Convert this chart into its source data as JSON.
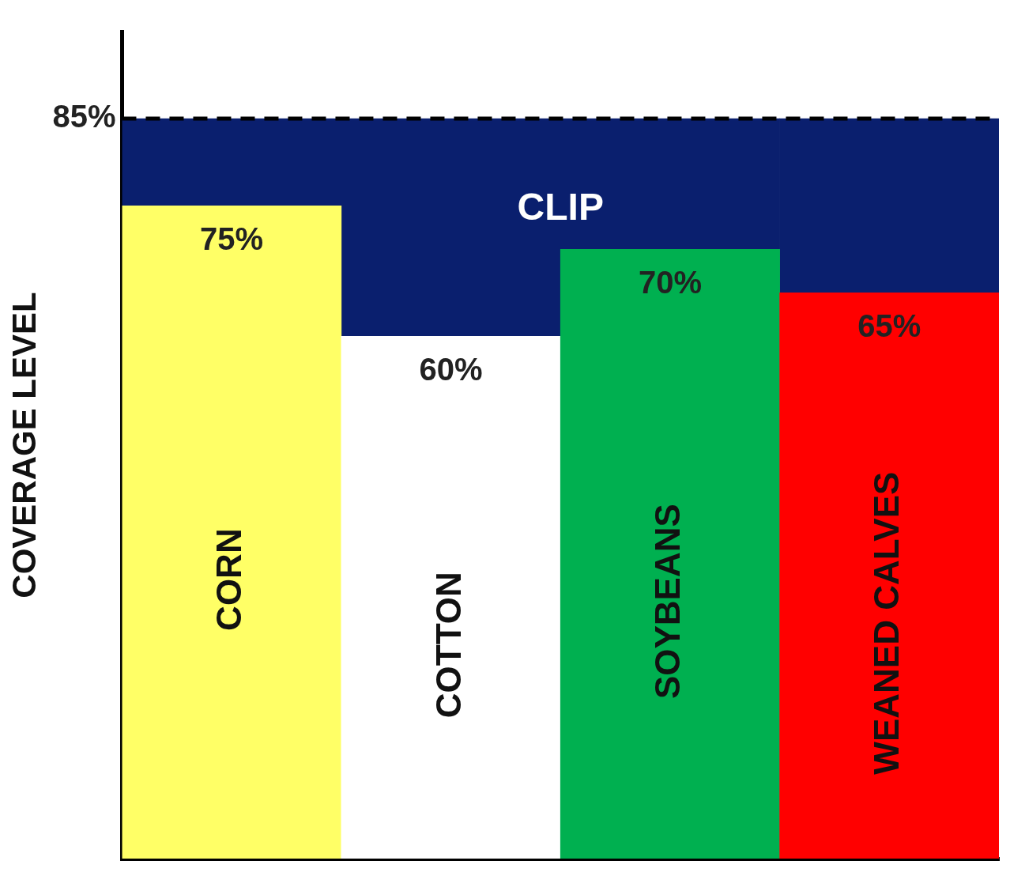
{
  "chart_data": {
    "type": "bar",
    "ylabel": "COVERAGE LEVEL",
    "categories": [
      "CORN",
      "COTTON",
      "SOYBEANS",
      "WEANED CALVES"
    ],
    "stacked": true,
    "series": [
      {
        "colors": [
          "#ffff66",
          "#ffffff",
          "#00b050",
          "#ff0000"
        ],
        "values": [
          75,
          60,
          70,
          65
        ],
        "value_labels": [
          "75%",
          "60%",
          "70%",
          "65%"
        ]
      },
      {
        "name": "CLIP",
        "color": "#0a1f6e",
        "values": [
          10,
          25,
          15,
          20
        ]
      }
    ],
    "ylim": [
      0,
      95
    ],
    "yticks": [
      {
        "value": 85,
        "label": "85%"
      }
    ],
    "grid": false,
    "legend": false,
    "tick_labels": "y",
    "ref_lines": [
      {
        "axis": "y",
        "value": 85,
        "line_style": "dashed",
        "color": "#000000"
      }
    ]
  }
}
